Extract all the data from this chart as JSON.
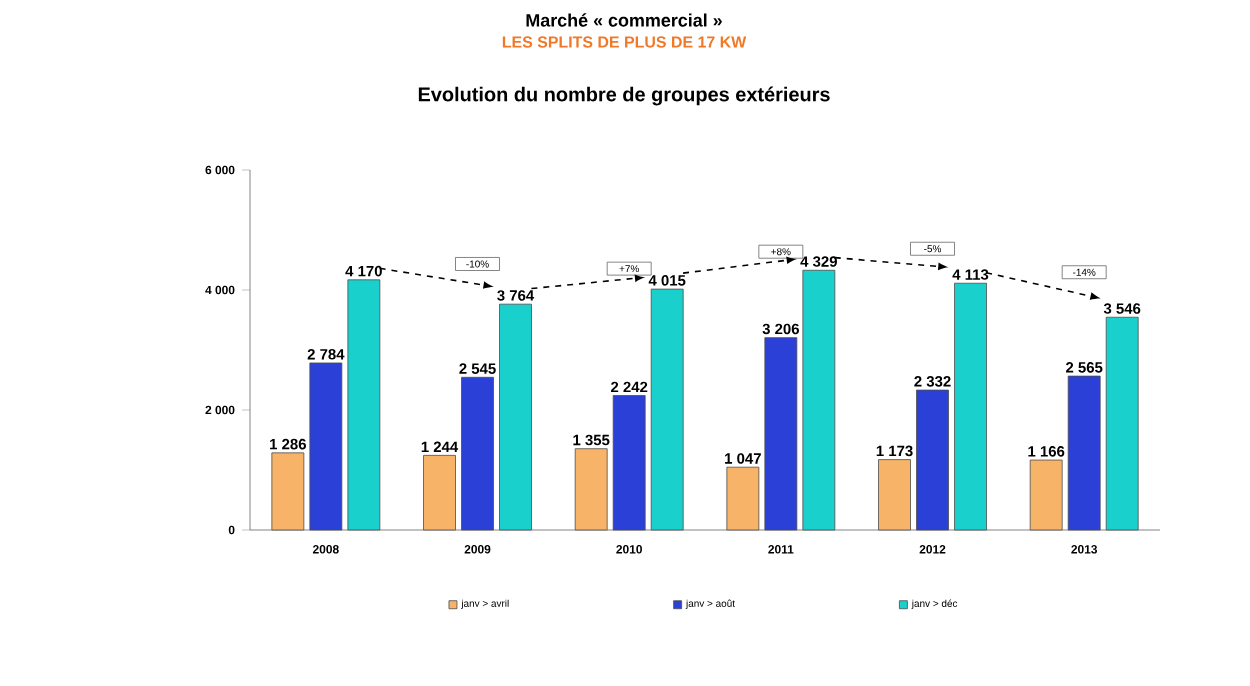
{
  "chart_data": {
    "type": "bar",
    "title": "Marché « commercial »",
    "subtitle": "LES SPLITS DE PLUS DE 17 KW",
    "annotations": [
      "Evolution du nombre de groupes extérieurs",
      "-10%",
      "+7%",
      "+8%",
      "-5%",
      "-14%"
    ],
    "categories": [
      "2008",
      "2009",
      "2010",
      "2011",
      "2012",
      "2013"
    ],
    "series": [
      {
        "name": "janv > avril",
        "color": "#f7b469",
        "values": [
          1286,
          1244,
          1355,
          1047,
          1173,
          1166
        ],
        "value_labels": [
          "1 286",
          "1 244",
          "1 355",
          "1 047",
          "1 173",
          "1 166"
        ]
      },
      {
        "name": "janv > août",
        "color": "#2b40d6",
        "values": [
          2784,
          2545,
          2242,
          3206,
          2332,
          2565
        ],
        "value_labels": [
          "2 784",
          "2 545",
          "2 242",
          "3 206",
          "2 332",
          "2 565"
        ]
      },
      {
        "name": "janv > déc",
        "color": "#1ad0cc",
        "values": [
          4170,
          3764,
          4015,
          4329,
          4113,
          3546
        ],
        "value_labels": [
          "4 170",
          "3 764",
          "4 015",
          "4 329",
          "4 113",
          "3 546"
        ]
      }
    ],
    "ylim": [
      0,
      6000
    ],
    "yticks": [
      0,
      {
        "value": 2000,
        "label": "2 000"
      },
      {
        "value": 4000,
        "label": "4 000"
      },
      {
        "value": 6000,
        "label": "6 000"
      }
    ],
    "grid": false,
    "legend": "bottom"
  }
}
